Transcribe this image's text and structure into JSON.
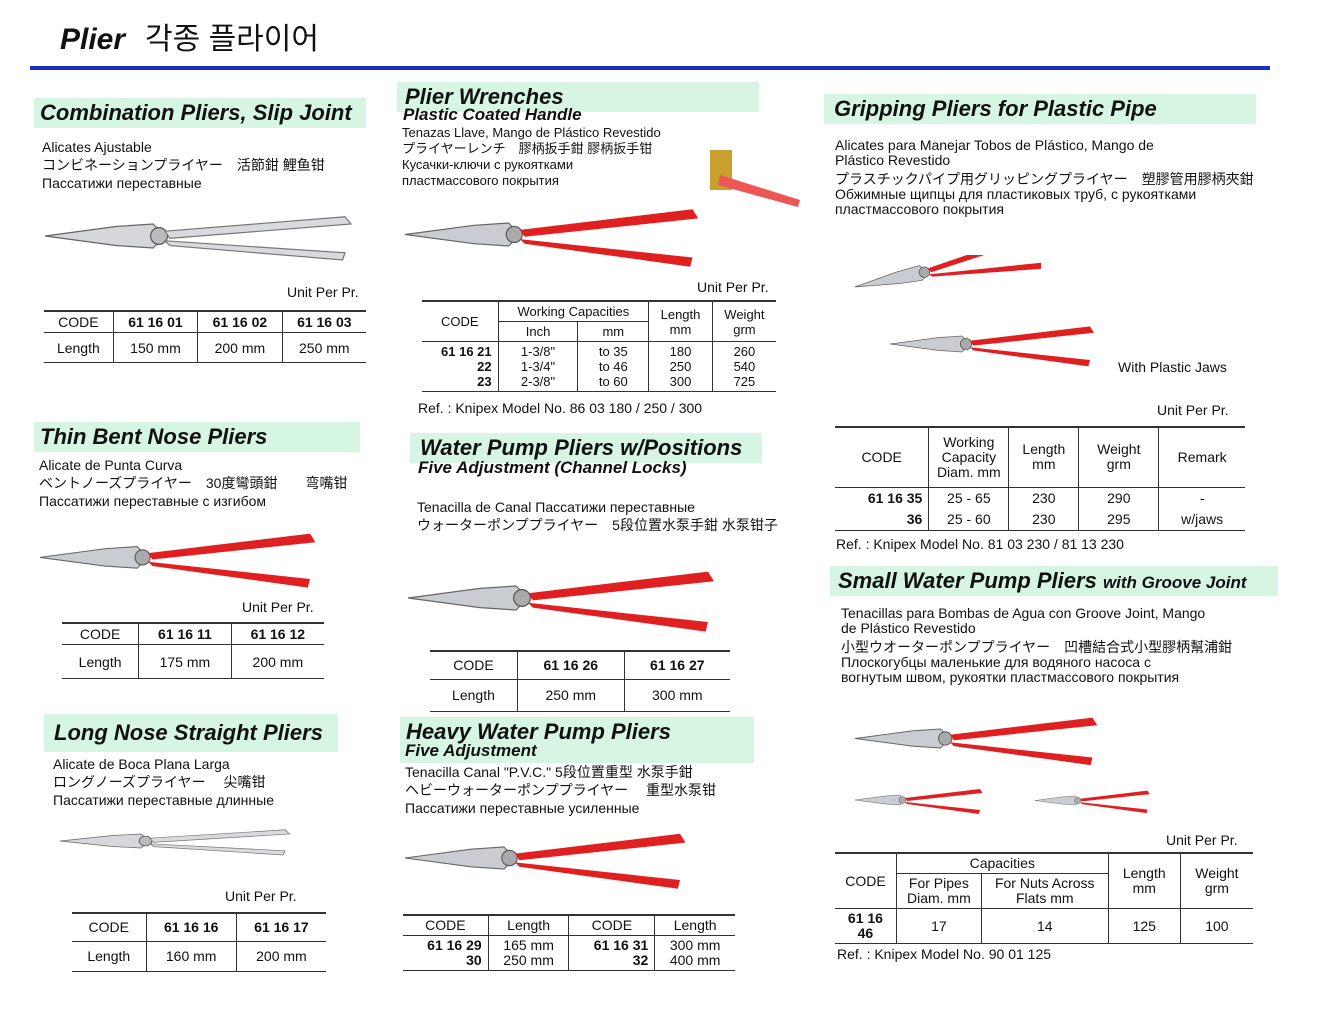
{
  "header": {
    "title": "Plier",
    "title_ko": "각종 플라이어"
  },
  "combination": {
    "title": "Combination Pliers, Slip Joint",
    "lines": [
      "Alicates Ajustable",
      "コンビネーションプライヤー　活節鉗 鯉鱼钳",
      "Пассатижи переставные"
    ],
    "unit": "Unit Per Pr.",
    "headers": [
      "CODE",
      "61 16 01",
      "61 16 02",
      "61 16 03"
    ],
    "row": [
      "Length",
      "150 mm",
      "200 mm",
      "250 mm"
    ]
  },
  "wrenches": {
    "title": "Plier Wrenches",
    "subtitle": "Plastic Coated Handle",
    "lines": [
      "Tenazas Llave, Mango de Plástico Revestido",
      "プライヤーレンチ　膠柄扳手鉗 膠柄扳手钳",
      "Кусачки-ключи с рукоятками",
      "пластмассового покрытия"
    ],
    "unit": "Unit Per Pr.",
    "h_code": "CODE",
    "h_wc": "Working Capacities",
    "h_inch": "Inch",
    "h_mm": "mm",
    "h_len": "Length",
    "h_len_u": "mm",
    "h_wt": "Weight",
    "h_wt_u": "grm",
    "codes": [
      "61 16 21",
      "22",
      "23"
    ],
    "inch": [
      "1-3/8\"",
      "1-3/4\"",
      "2-3/8\""
    ],
    "mm": [
      "to 35",
      "to 46",
      "to 60"
    ],
    "length": [
      "180",
      "250",
      "300"
    ],
    "weight": [
      "260",
      "540",
      "725"
    ],
    "ref": "Ref. : Knipex Model No. 86 03 180 / 250 / 300"
  },
  "gripping": {
    "title": "Gripping Pliers for Plastic Pipe",
    "lines": [
      "Alicates para Manejar Tobos de Plástico, Mango de",
      "Plástico Revestido",
      "プラスチックパイプ用グリッピングプライヤー　塑膠管用膠柄夾鉗",
      "Обжимные щипцы для пластиковых труб, с рукоятками",
      "пластмассового покрытия"
    ],
    "jaws_label": "With Plastic Jaws",
    "unit": "Unit Per Pr.",
    "headers": [
      "CODE",
      "Working Capacity Diam. mm",
      "Length mm",
      "Weight grm",
      "Remark"
    ],
    "rows": [
      [
        "61 16 35",
        "25 - 65",
        "230",
        "290",
        "-"
      ],
      [
        "36",
        "25 - 60",
        "230",
        "295",
        "w/jaws"
      ]
    ],
    "ref": "Ref. : Knipex Model No. 81 03 230 / 81 13 230"
  },
  "bent": {
    "title": "Thin Bent Nose Pliers",
    "lines": [
      "Alicate de Punta Curva",
      "ベントノーズプライヤー　30度彎頭鉗　　弯嘴钳",
      "Пассатижи переставные с изгибом"
    ],
    "unit": "Unit Per Pr.",
    "headers": [
      "CODE",
      "61 16 11",
      "61 16 12"
    ],
    "row": [
      "Length",
      "175 mm",
      "200 mm"
    ]
  },
  "waterpump": {
    "title": "Water Pump Pliers w/Positions",
    "subtitle": "Five Adjustment  (Channel Locks)",
    "lines": [
      "Tenacilla de Canal  Пассатижи переставные",
      "ウォーターポンププライヤー　5段位置水泵手鉗  水泵钳子"
    ],
    "headers": [
      "CODE",
      "61 16 26",
      "61 16 27"
    ],
    "row": [
      "Length",
      "250 mm",
      "300 mm"
    ]
  },
  "smallwp": {
    "title": "Small Water Pump Pliers",
    "title_suffix": "with Groove Joint",
    "lines": [
      "Tenacillas para Bombas de Agua con Groove Joint, Mango",
      "de Plástico Revestido",
      "小型ウオーターポンププライヤー　凹槽結合式小型膠柄幫浦鉗",
      "Плоскогубцы маленькие для водяного насоса с",
      "вогнутым швом, рукоятки пластмассового покрытия"
    ],
    "unit": "Unit Per Pr.",
    "h_code": "CODE",
    "h_cap": "Capacities",
    "h_pipes": "For Pipes Diam. mm",
    "h_nuts": "For Nuts Across Flats mm",
    "h_len": "Length mm",
    "h_wt": "Weight grm",
    "row": [
      "61 16 46",
      "17",
      "14",
      "125",
      "100"
    ],
    "ref": "Ref. : Knipex Model No. 90 01 125"
  },
  "longnose": {
    "title": "Long Nose Straight Pliers",
    "lines": [
      "Alicate de Boca Plana Larga",
      "ロングノーズプライヤー　 尖嘴钳",
      "Пассатижи переставные длинные"
    ],
    "unit": "Unit Per Pr.",
    "headers": [
      "CODE",
      "61 16 16",
      "61 16 17"
    ],
    "row": [
      "Length",
      "160 mm",
      "200 mm"
    ]
  },
  "heavywp": {
    "title": "Heavy Water Pump Pliers",
    "subtitle": "Five Adjustment",
    "lines": [
      "Tenacilla Canal \"P.V.C.\"  5段位置重型 水泵手鉗",
      "ヘビーウォーターポンププライヤー　 重型水泵钳",
      "Пассатижи переставные усиленные"
    ],
    "headers": [
      "CODE",
      "Length",
      "CODE",
      "Length"
    ],
    "codes1": [
      "61 16 29",
      "30"
    ],
    "len1": [
      "165 mm",
      "250 mm"
    ],
    "codes2": [
      "61 16 31",
      "32"
    ],
    "len2": [
      "300 mm",
      "400 mm"
    ]
  },
  "colors": {
    "band": "#d6f5e3",
    "rule": "#1a2fc4",
    "handle": "#e02020"
  }
}
